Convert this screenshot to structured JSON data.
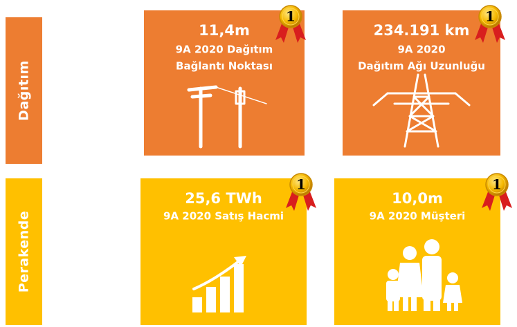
{
  "sections": [
    {
      "label": "Dağıtım",
      "tiles": [
        {
          "value": "11,4m",
          "lines": [
            "9A 2020 Dağıtım",
            "Bağlantı Noktası"
          ],
          "rank": 1
        },
        {
          "value": "234.191 km",
          "lines": [
            "9A 2020",
            "Dağıtım Ağı Uzunluğu"
          ],
          "rank": 1
        }
      ]
    },
    {
      "label": "Perakende",
      "tiles": [
        {
          "value": "25,6 TWh",
          "lines": [
            "9A 2020 Satış Hacmi"
          ],
          "rank": 1
        },
        {
          "value": "10,0m",
          "lines": [
            "9A 2020 Müşteri"
          ],
          "rank": 1
        }
      ]
    }
  ]
}
